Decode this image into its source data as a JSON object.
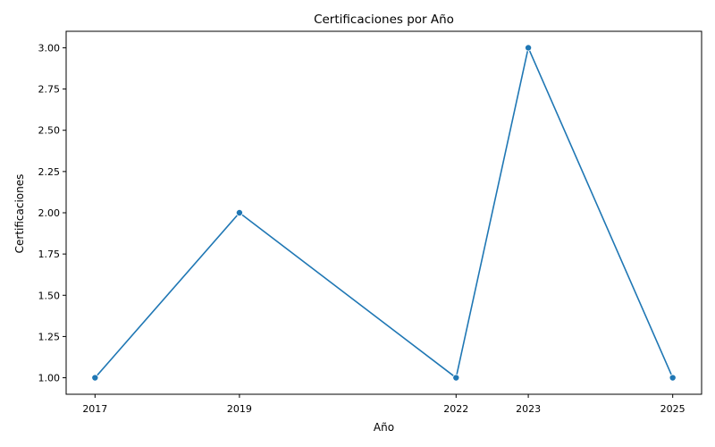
{
  "chart_data": {
    "type": "line",
    "title": "Certificaciones por Año",
    "xlabel": "Año",
    "ylabel": "Certificaciones",
    "x": [
      2017,
      2019,
      2022,
      2023,
      2025
    ],
    "series": [
      {
        "values": [
          1,
          2,
          1,
          3,
          1
        ],
        "color": "#1f77b4"
      }
    ],
    "xticks": [
      "2017",
      "2019",
      "2022",
      "2023",
      "2025"
    ],
    "yticks": [
      "1.00",
      "1.25",
      "1.50",
      "1.75",
      "2.00",
      "2.25",
      "2.50",
      "2.75",
      "3.00"
    ],
    "xlim": [
      2016.6,
      2025.4
    ],
    "ylim": [
      0.9,
      3.1
    ],
    "grid": false,
    "marker": "circle"
  }
}
